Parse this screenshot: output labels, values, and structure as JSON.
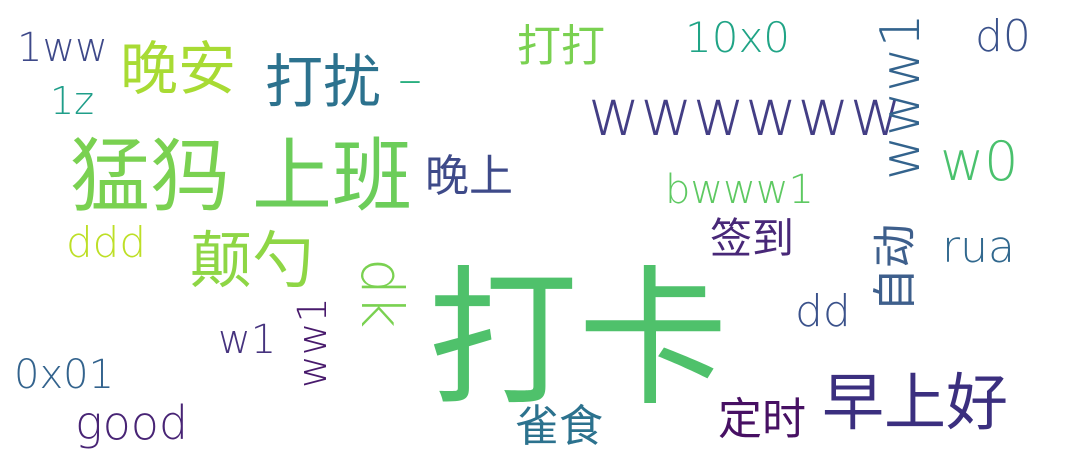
{
  "words": [
    {
      "text": "打卡",
      "color": "#4fc16b"
    },
    {
      "text": "猛犸",
      "color": "#7ad151"
    },
    {
      "text": "上班",
      "color": "#6ccd5a"
    },
    {
      "text": "wwwwww",
      "color": "#433e85"
    },
    {
      "text": "www1",
      "color": "#33638d"
    },
    {
      "text": "早上好",
      "color": "#3b2f7f"
    },
    {
      "text": "w0",
      "color": "#4ac16d"
    },
    {
      "text": "颠勺",
      "color": "#8ed645"
    },
    {
      "text": "晚安",
      "color": "#a8db34"
    },
    {
      "text": "打扰",
      "color": "#2c728e"
    },
    {
      "text": "dk",
      "color": "#7ad151"
    },
    {
      "text": "bwww1",
      "color": "#5ec962"
    },
    {
      "text": "晚上",
      "color": "#3e4a89"
    },
    {
      "text": "签到",
      "color": "#482878"
    },
    {
      "text": "rua",
      "color": "#31688e"
    },
    {
      "text": "自动",
      "color": "#3e5f8c"
    },
    {
      "text": "dd",
      "color": "#3b528b"
    },
    {
      "text": "ddd",
      "color": "#bddf26"
    },
    {
      "text": "1ww",
      "color": "#3e4989"
    },
    {
      "text": "1z",
      "color": "#1f9e89"
    },
    {
      "text": "打打",
      "color": "#7ad151"
    },
    {
      "text": "10x0",
      "color": "#20a486"
    },
    {
      "text": "d0",
      "color": "#3b528b"
    },
    {
      "text": "–",
      "color": "#29af7f"
    },
    {
      "text": "w1",
      "color": "#46337e"
    },
    {
      "text": "ww1",
      "color": "#481a6c"
    },
    {
      "text": "0x01",
      "color": "#33638d"
    },
    {
      "text": "good",
      "color": "#482475"
    },
    {
      "text": "雀食",
      "color": "#2c728e"
    },
    {
      "text": "定时",
      "color": "#471063"
    }
  ]
}
